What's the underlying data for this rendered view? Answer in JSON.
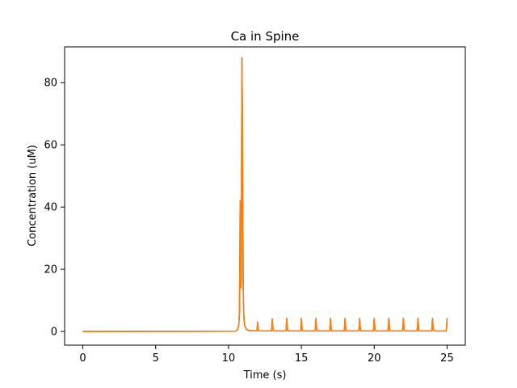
{
  "chart_data": {
    "type": "line",
    "title": "Ca in Spine",
    "xlabel": "Time (s)",
    "ylabel": "Concentration (uM)",
    "xlim": [
      -1.25,
      26.25
    ],
    "ylim": [
      -4.4,
      91.5
    ],
    "xticks": [
      0,
      5,
      10,
      15,
      20,
      25
    ],
    "yticks": [
      0,
      20,
      40,
      60,
      80
    ],
    "grid": false,
    "series": [
      {
        "color": "#1f77b4",
        "x": [
          0,
          10.5,
          10.6,
          10.7,
          10.75,
          10.78,
          10.8,
          10.82,
          10.85,
          10.88,
          10.9,
          10.92,
          10.95,
          10.98,
          11.0,
          11.02,
          11.05,
          11.1,
          11.2,
          11.4,
          11.9,
          11.95,
          12.0,
          12.05,
          12.1,
          12.9,
          12.95,
          13.0,
          13.05,
          13.1,
          13.9,
          13.95,
          14.0,
          14.05,
          14.1,
          14.9,
          14.95,
          15.0,
          15.05,
          15.1,
          15.9,
          15.95,
          16.0,
          16.05,
          16.1,
          16.9,
          16.95,
          17.0,
          17.05,
          17.1,
          17.9,
          17.95,
          18.0,
          18.05,
          18.1,
          18.9,
          18.95,
          19.0,
          19.05,
          19.1,
          19.9,
          19.95,
          20.0,
          20.05,
          20.1,
          20.9,
          20.95,
          21.0,
          21.05,
          21.1,
          21.9,
          21.95,
          22.0,
          22.05,
          22.1,
          22.9,
          22.95,
          23.0,
          23.05,
          23.1,
          23.9,
          23.95,
          24.0,
          24.05,
          24.1,
          24.9,
          24.95,
          25.0
        ],
        "y": [
          0,
          0.1,
          0.5,
          2.0,
          6.0,
          25.0,
          42.0,
          30.0,
          14.0,
          25.0,
          60.0,
          88.0,
          70.0,
          40.0,
          20.0,
          10.0,
          5.0,
          2.0,
          0.8,
          0.3,
          0.2,
          0.2,
          3.0,
          0.5,
          0.2,
          0.2,
          0.2,
          4.0,
          0.6,
          0.2,
          0.2,
          0.2,
          4.2,
          0.6,
          0.2,
          0.2,
          0.2,
          4.2,
          0.6,
          0.2,
          0.2,
          0.2,
          4.2,
          0.6,
          0.2,
          0.2,
          0.2,
          4.2,
          0.6,
          0.2,
          0.2,
          0.2,
          4.2,
          0.6,
          0.2,
          0.2,
          0.2,
          4.2,
          0.6,
          0.2,
          0.2,
          0.2,
          4.2,
          0.6,
          0.2,
          0.2,
          0.2,
          4.2,
          0.6,
          0.2,
          0.2,
          0.2,
          4.2,
          0.6,
          0.2,
          0.2,
          0.2,
          4.2,
          0.6,
          0.2,
          0.2,
          0.2,
          4.2,
          0.6,
          0.2,
          0.2,
          0.2,
          4.3
        ]
      },
      {
        "color": "#ff7f0e",
        "x": [
          0,
          10.5,
          10.6,
          10.7,
          10.75,
          10.78,
          10.8,
          10.82,
          10.85,
          10.88,
          10.9,
          10.92,
          10.95,
          10.98,
          11.0,
          11.02,
          11.05,
          11.1,
          11.2,
          11.4,
          11.9,
          11.95,
          12.0,
          12.05,
          12.1,
          12.9,
          12.95,
          13.0,
          13.05,
          13.1,
          13.9,
          13.95,
          14.0,
          14.05,
          14.1,
          14.9,
          14.95,
          15.0,
          15.05,
          15.1,
          15.9,
          15.95,
          16.0,
          16.05,
          16.1,
          16.9,
          16.95,
          17.0,
          17.05,
          17.1,
          17.9,
          17.95,
          18.0,
          18.05,
          18.1,
          18.9,
          18.95,
          19.0,
          19.05,
          19.1,
          19.9,
          19.95,
          20.0,
          20.05,
          20.1,
          20.9,
          20.95,
          21.0,
          21.05,
          21.1,
          21.9,
          21.95,
          22.0,
          22.05,
          22.1,
          22.9,
          22.95,
          23.0,
          23.05,
          23.1,
          23.9,
          23.95,
          24.0,
          24.05,
          24.1,
          24.9,
          24.95,
          25.0
        ],
        "y": [
          0,
          0.1,
          0.5,
          2.0,
          6.0,
          25.0,
          42.0,
          30.0,
          14.0,
          25.0,
          60.0,
          88.0,
          70.0,
          40.0,
          20.0,
          10.0,
          5.0,
          2.0,
          0.8,
          0.3,
          0.2,
          0.2,
          3.0,
          0.5,
          0.2,
          0.2,
          0.2,
          4.0,
          0.6,
          0.2,
          0.2,
          0.2,
          4.2,
          0.6,
          0.2,
          0.2,
          0.2,
          4.2,
          0.6,
          0.2,
          0.2,
          0.2,
          4.2,
          0.6,
          0.2,
          0.2,
          0.2,
          4.2,
          0.6,
          0.2,
          0.2,
          0.2,
          4.2,
          0.6,
          0.2,
          0.2,
          0.2,
          4.2,
          0.6,
          0.2,
          0.2,
          0.2,
          4.2,
          0.6,
          0.2,
          0.2,
          0.2,
          4.2,
          0.6,
          0.2,
          0.2,
          0.2,
          4.2,
          0.6,
          0.2,
          0.2,
          0.2,
          4.2,
          0.6,
          0.2,
          0.2,
          0.2,
          4.2,
          0.6,
          0.2,
          0.2,
          0.2,
          4.3
        ]
      }
    ]
  }
}
